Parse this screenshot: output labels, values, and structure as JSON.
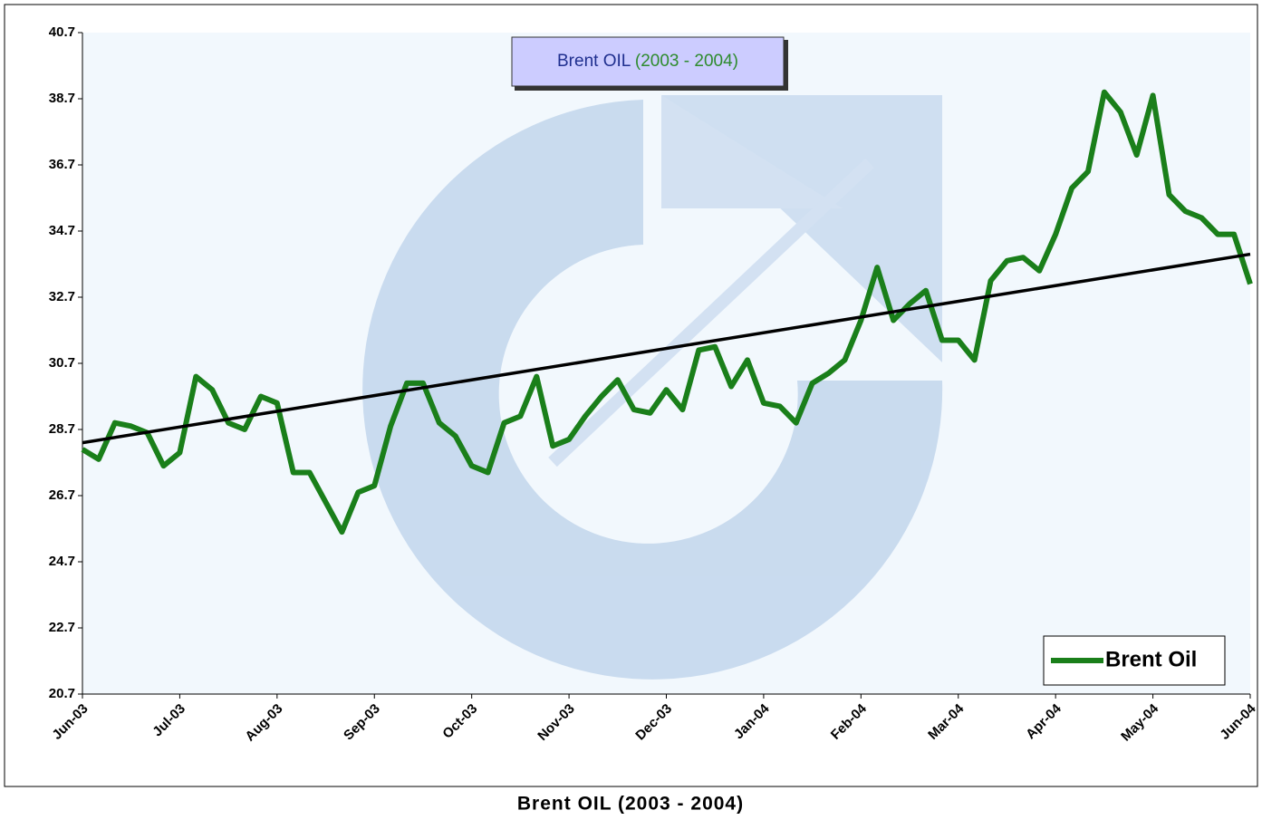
{
  "chart_data": {
    "type": "line",
    "title_name": "Brent OIL",
    "title_period": "(2003 - 2004)",
    "caption": "Brent OIL (2003 - 2004)",
    "categories": [
      "Jun-03",
      null,
      null,
      null,
      null,
      null,
      "Jul-03",
      null,
      null,
      null,
      null,
      null,
      "Aug-03",
      null,
      null,
      null,
      null,
      null,
      "Sep-03",
      null,
      null,
      null,
      null,
      null,
      "Oct-03",
      null,
      null,
      null,
      null,
      null,
      "Nov-03",
      null,
      null,
      null,
      null,
      null,
      "Dec-03",
      null,
      null,
      null,
      null,
      null,
      "Jan-04",
      null,
      null,
      null,
      null,
      null,
      "Feb-04",
      null,
      null,
      null,
      null,
      null,
      "Mar-04",
      null,
      null,
      null,
      null,
      null,
      "Apr-04",
      null,
      null,
      null,
      null,
      null,
      "May-04",
      null,
      null,
      null,
      null,
      null,
      "Jun-04"
    ],
    "series": [
      {
        "name": "Brent Oil",
        "color": "#1a7f1a",
        "values": [
          28.1,
          27.8,
          28.9,
          28.8,
          28.6,
          27.6,
          28.0,
          30.3,
          29.9,
          28.9,
          28.7,
          29.7,
          29.5,
          27.4,
          27.4,
          26.5,
          25.6,
          26.8,
          27.0,
          28.8,
          30.1,
          30.1,
          28.9,
          28.5,
          27.6,
          27.4,
          28.9,
          29.1,
          30.3,
          28.2,
          28.4,
          29.1,
          29.7,
          30.2,
          29.3,
          29.2,
          29.9,
          29.3,
          31.1,
          31.2,
          30.0,
          30.8,
          29.5,
          29.4,
          28.9,
          30.1,
          30.4,
          30.8,
          32.0,
          33.6,
          32.0,
          32.5,
          32.9,
          31.4,
          31.4,
          30.8,
          33.2,
          33.8,
          33.9,
          33.5,
          34.6,
          36.0,
          36.5,
          38.9,
          38.3,
          37.0,
          38.8,
          35.8,
          35.3,
          35.1,
          34.6,
          34.6,
          33.1
        ]
      }
    ],
    "trendline": {
      "start": 28.3,
      "end": 34.0,
      "color": "#000000"
    },
    "ylim": [
      20.7,
      40.7
    ],
    "yticks": [
      20.7,
      22.7,
      24.7,
      26.7,
      28.7,
      30.7,
      32.7,
      34.7,
      36.7,
      38.7,
      40.7
    ],
    "legend": "lower right"
  }
}
